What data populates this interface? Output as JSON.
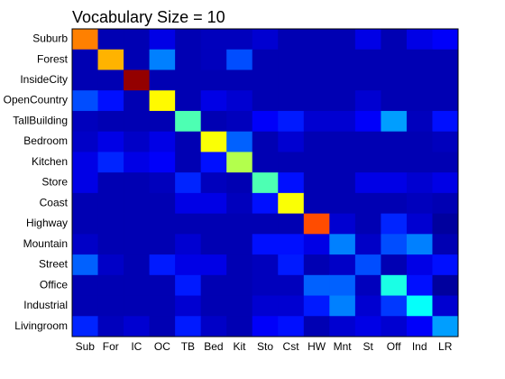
{
  "chart_data": {
    "type": "heatmap",
    "title": "Vocabulary Size = 10",
    "categories": [
      "Sub",
      "For",
      "IC",
      "OC",
      "TB",
      "Bed",
      "Kit",
      "Sto",
      "Cst",
      "HW",
      "Mnt",
      "St",
      "Off",
      "Ind",
      "LR"
    ],
    "y_categories": [
      "Suburb",
      "Forest",
      "InsideCity",
      "OpenCountry",
      "TallBuilding",
      "Bedroom",
      "Kitchen",
      "Store",
      "Coast",
      "Highway",
      "Mountain",
      "Street",
      "Office",
      "Industrial",
      "Livingroom"
    ],
    "colormap": "jet",
    "zlim": [
      0,
      1
    ],
    "values": [
      [
        0.75,
        0.05,
        0.05,
        0.1,
        0.05,
        0.06,
        0.06,
        0.08,
        0.05,
        0.05,
        0.05,
        0.1,
        0.05,
        0.1,
        0.12
      ],
      [
        0.05,
        0.7,
        0.05,
        0.25,
        0.05,
        0.06,
        0.2,
        0.05,
        0.05,
        0.05,
        0.05,
        0.05,
        0.05,
        0.05,
        0.05
      ],
      [
        0.05,
        0.05,
        0.98,
        0.05,
        0.05,
        0.05,
        0.05,
        0.05,
        0.05,
        0.05,
        0.05,
        0.05,
        0.05,
        0.05,
        0.05
      ],
      [
        0.2,
        0.14,
        0.05,
        0.63,
        0.05,
        0.1,
        0.08,
        0.05,
        0.05,
        0.05,
        0.05,
        0.08,
        0.05,
        0.05,
        0.05
      ],
      [
        0.06,
        0.05,
        0.05,
        0.05,
        0.45,
        0.05,
        0.06,
        0.12,
        0.15,
        0.08,
        0.08,
        0.12,
        0.28,
        0.06,
        0.14
      ],
      [
        0.07,
        0.1,
        0.07,
        0.1,
        0.05,
        0.62,
        0.22,
        0.05,
        0.08,
        0.05,
        0.05,
        0.05,
        0.05,
        0.05,
        0.06
      ],
      [
        0.1,
        0.16,
        0.1,
        0.12,
        0.05,
        0.14,
        0.55,
        0.05,
        0.05,
        0.05,
        0.05,
        0.05,
        0.05,
        0.05,
        0.05
      ],
      [
        0.1,
        0.05,
        0.05,
        0.06,
        0.16,
        0.06,
        0.05,
        0.45,
        0.14,
        0.05,
        0.05,
        0.1,
        0.1,
        0.08,
        0.1
      ],
      [
        0.05,
        0.05,
        0.05,
        0.05,
        0.1,
        0.1,
        0.06,
        0.14,
        0.62,
        0.05,
        0.05,
        0.05,
        0.05,
        0.06,
        0.05
      ],
      [
        0.05,
        0.05,
        0.05,
        0.05,
        0.05,
        0.05,
        0.05,
        0.05,
        0.05,
        0.8,
        0.08,
        0.05,
        0.16,
        0.08,
        0.03
      ],
      [
        0.07,
        0.05,
        0.05,
        0.05,
        0.08,
        0.05,
        0.05,
        0.14,
        0.14,
        0.1,
        0.25,
        0.07,
        0.2,
        0.25,
        0.05
      ],
      [
        0.22,
        0.07,
        0.05,
        0.15,
        0.1,
        0.1,
        0.05,
        0.06,
        0.15,
        0.05,
        0.07,
        0.2,
        0.05,
        0.1,
        0.14
      ],
      [
        0.05,
        0.05,
        0.05,
        0.05,
        0.15,
        0.05,
        0.05,
        0.06,
        0.06,
        0.22,
        0.22,
        0.06,
        0.4,
        0.14,
        0.03
      ],
      [
        0.05,
        0.05,
        0.05,
        0.05,
        0.08,
        0.05,
        0.05,
        0.08,
        0.08,
        0.15,
        0.25,
        0.08,
        0.18,
        0.38,
        0.08
      ],
      [
        0.16,
        0.06,
        0.08,
        0.05,
        0.15,
        0.07,
        0.05,
        0.12,
        0.14,
        0.05,
        0.08,
        0.1,
        0.08,
        0.12,
        0.28
      ]
    ]
  }
}
